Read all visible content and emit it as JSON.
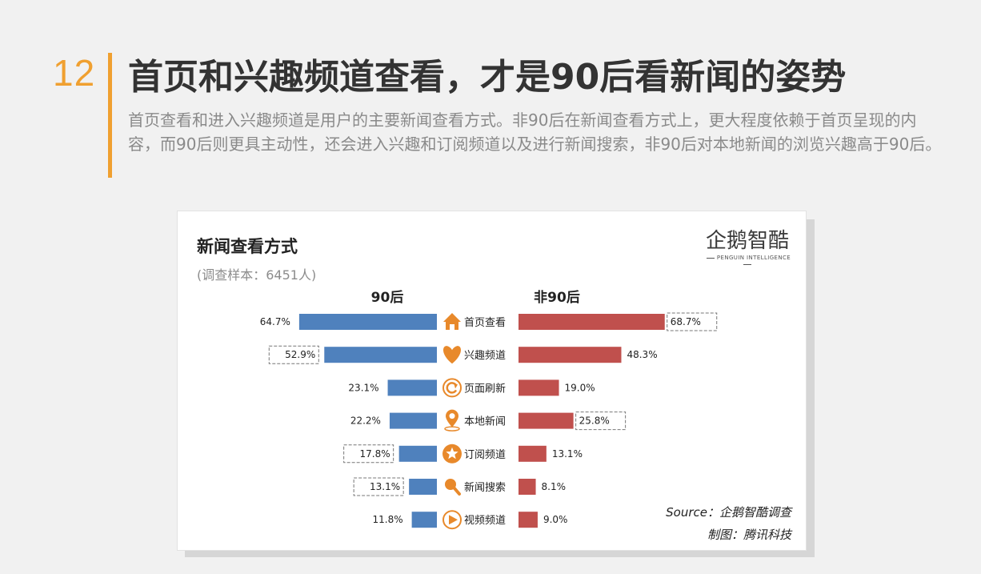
{
  "page": {
    "slide_number": "12",
    "headline": "首页和兴趣频道查看，才是90后看新闻的姿势",
    "description": "首页查看和进入兴趣频道是用户的主要新闻查看方式。非90后在新闻查看方式上，更大程度依赖于首页呈现的内容，而90后则更具主动性，还会进入兴趣和订阅频道以及进行新闻搜索，非90后对本地新闻的浏览兴趣高于90后。",
    "accent_color": "#f0a030"
  },
  "card": {
    "logo_text": "企鹅智酷",
    "logo_subtext": "PENGUIN INTELLIGENCE",
    "source": "Source：企鹅智酷调查",
    "credit": "制图：腾讯科技"
  },
  "chart_data": {
    "type": "bar",
    "orientation": "horizontal-butterfly",
    "title": "新闻查看方式",
    "subtitle": "(调查样本：6451人)",
    "categories": [
      "首页查看",
      "兴趣频道",
      "页面刷新",
      "本地新闻",
      "订阅频道",
      "新闻搜索",
      "视频频道"
    ],
    "category_icons": [
      "home-icon",
      "heart-icon",
      "refresh-icon",
      "location-pin-icon",
      "star-icon",
      "search-icon",
      "play-icon"
    ],
    "series": [
      {
        "name": "90后",
        "color": "#4f81bd",
        "values": [
          64.7,
          52.9,
          23.1,
          22.2,
          17.8,
          13.1,
          11.8
        ],
        "labels": [
          "64.7%",
          "52.9%",
          "23.1%",
          "22.2%",
          "17.8%",
          "13.1%",
          "11.8%"
        ],
        "highlighted": [
          false,
          true,
          false,
          false,
          true,
          true,
          false
        ]
      },
      {
        "name": "非90后",
        "color": "#c0504d",
        "values": [
          68.7,
          48.3,
          19.0,
          25.8,
          13.1,
          8.1,
          9.0
        ],
        "labels": [
          "68.7%",
          "48.3%",
          "19.0%",
          "25.8%",
          "13.1%",
          "8.1%",
          "9.0%"
        ],
        "highlighted": [
          true,
          false,
          false,
          true,
          false,
          false,
          false
        ]
      }
    ],
    "icon_color": "#e8892b",
    "grid": false,
    "axis_visible": false
  }
}
